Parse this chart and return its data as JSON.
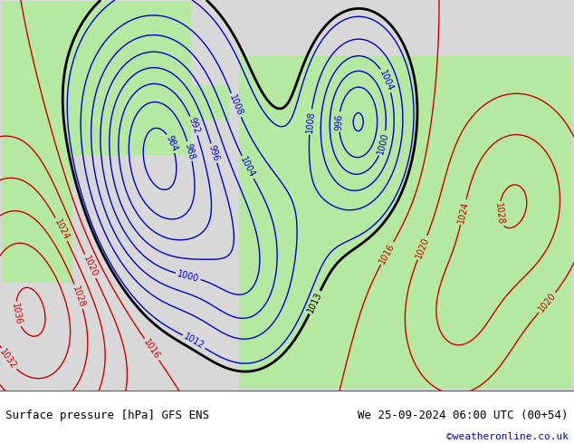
{
  "title_left": "Surface pressure [hPa] GFS ENS",
  "title_right": "We 25-09-2024 06:00 UTC (00+54)",
  "credit": "©weatheronline.co.uk",
  "bg_color": "#d8d8d8",
  "land_color": "#b5e8a0",
  "sea_color": "#d8d8d8",
  "bottom_bar_color": "#ffffff",
  "text_color_left": "#000000",
  "text_color_right": "#000000",
  "credit_color": "#0000cc",
  "contour_colors": {
    "low": "#0000cc",
    "high": "#cc0000",
    "border": "#000000"
  },
  "figsize": [
    6.34,
    4.9
  ],
  "dpi": 100
}
